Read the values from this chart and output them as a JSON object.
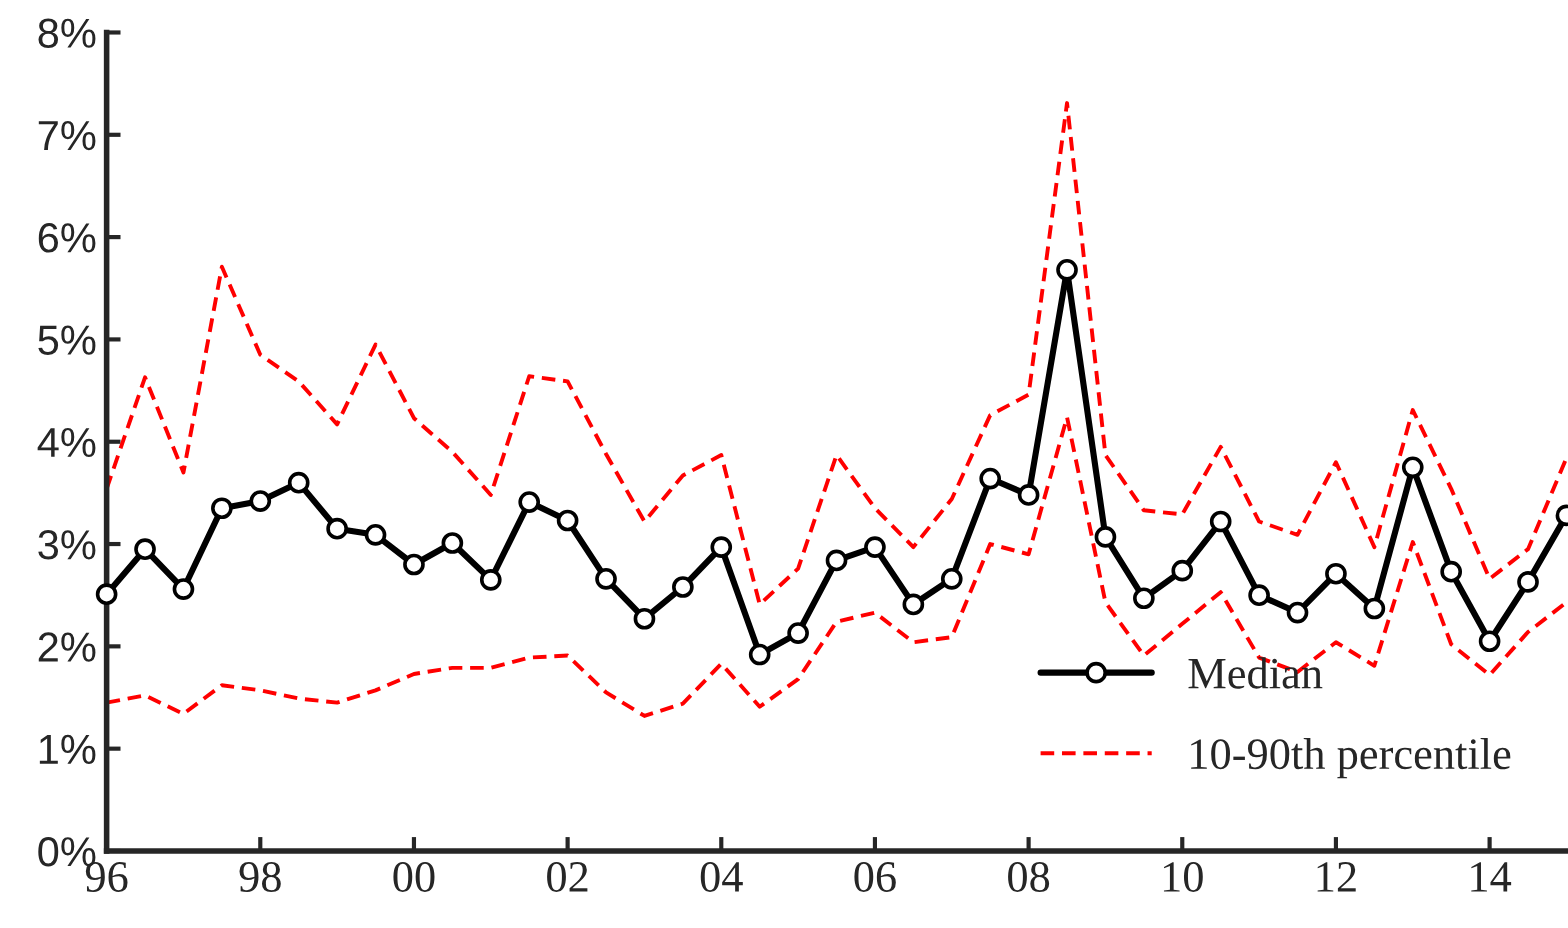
{
  "chart_data": {
    "type": "line",
    "x": [
      1996,
      1996.5,
      1997,
      1997.5,
      1998,
      1998.5,
      1999,
      1999.5,
      2000,
      2000.5,
      2001,
      2001.5,
      2002,
      2002.5,
      2003,
      2003.5,
      2004,
      2004.5,
      2005,
      2005.5,
      2006,
      2006.5,
      2007,
      2007.5,
      2008,
      2008.5,
      2009,
      2009.5,
      2010,
      2010.5,
      2011,
      2011.5,
      2012,
      2012.5,
      2013,
      2013.5,
      2014,
      2014.5,
      2015
    ],
    "series": [
      {
        "name": "Median",
        "color": "#000000",
        "marker": "circle",
        "line_style": "solid",
        "values": [
          2.51,
          2.95,
          2.56,
          3.35,
          3.42,
          3.6,
          3.15,
          3.09,
          2.8,
          3.01,
          2.65,
          3.41,
          3.23,
          2.66,
          2.27,
          2.58,
          2.97,
          1.92,
          2.13,
          2.84,
          2.97,
          2.41,
          2.66,
          3.64,
          3.48,
          5.68,
          3.07,
          2.47,
          2.74,
          3.22,
          2.5,
          2.33,
          2.71,
          2.37,
          3.75,
          2.73,
          2.05,
          2.63,
          3.28
        ]
      },
      {
        "name": "10-90th percentile",
        "color": "#ff0000",
        "marker": "none",
        "line_style": "dashed",
        "values": [
          3.54,
          4.63,
          3.7,
          5.71,
          4.85,
          4.59,
          4.17,
          4.95,
          4.23,
          3.9,
          3.48,
          4.64,
          4.59,
          3.88,
          3.22,
          3.67,
          3.87,
          2.41,
          2.76,
          3.87,
          3.35,
          2.97,
          3.44,
          4.26,
          4.46,
          7.31,
          3.87,
          3.33,
          3.29,
          3.95,
          3.22,
          3.09,
          3.8,
          2.97,
          4.31,
          3.54,
          2.66,
          2.95,
          3.84
        ]
      },
      {
        "color": "#ff0000",
        "marker": "none",
        "line_style": "dashed",
        "values": [
          1.45,
          1.52,
          1.34,
          1.62,
          1.57,
          1.49,
          1.45,
          1.57,
          1.73,
          1.79,
          1.79,
          1.89,
          1.91,
          1.55,
          1.32,
          1.44,
          1.83,
          1.41,
          1.68,
          2.24,
          2.33,
          2.04,
          2.09,
          3.0,
          2.9,
          4.24,
          2.43,
          1.91,
          2.22,
          2.53,
          1.89,
          1.75,
          2.04,
          1.81,
          3.02,
          2.02,
          1.72,
          2.14,
          2.43
        ]
      }
    ],
    "xlim": [
      1996,
      2015
    ],
    "xticks": [
      {
        "value": 1996,
        "label": "96"
      },
      {
        "value": 1998,
        "label": "98"
      },
      {
        "value": 2000,
        "label": "00"
      },
      {
        "value": 2002,
        "label": "02"
      },
      {
        "value": 2004,
        "label": "04"
      },
      {
        "value": 2006,
        "label": "06"
      },
      {
        "value": 2008,
        "label": "08"
      },
      {
        "value": 2010,
        "label": "10"
      },
      {
        "value": 2012,
        "label": "12"
      },
      {
        "value": 2014,
        "label": "14"
      }
    ],
    "ylim": [
      0,
      8
    ],
    "yticks": [
      {
        "value": 0,
        "label": "0%"
      },
      {
        "value": 1,
        "label": "1%"
      },
      {
        "value": 2,
        "label": "2%"
      },
      {
        "value": 3,
        "label": "3%"
      },
      {
        "value": 4,
        "label": "4%"
      },
      {
        "value": 5,
        "label": "5%"
      },
      {
        "value": 6,
        "label": "6%"
      },
      {
        "value": 7,
        "label": "7%"
      },
      {
        "value": 8,
        "label": "8%"
      }
    ],
    "grid": false,
    "legend": "bottom right"
  }
}
